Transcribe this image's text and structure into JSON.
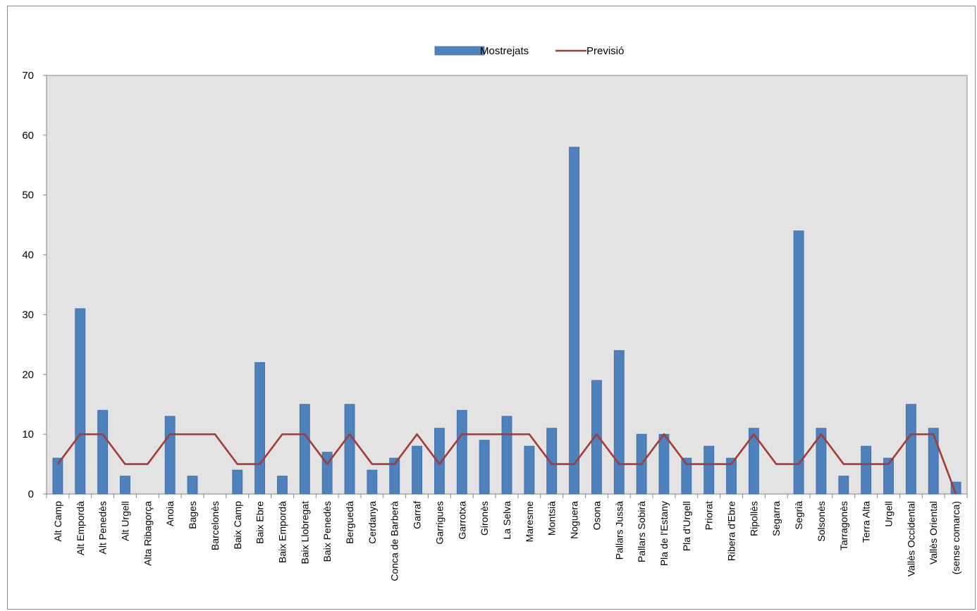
{
  "chart_data": {
    "type": "bar",
    "categories": [
      "Alt Camp",
      "Alt Empordà",
      "Alt Penedès",
      "Alt Urgell",
      "Alta Ribagorça",
      "Anoia",
      "Bages",
      "Barcelonès",
      "Baix Camp",
      "Baix Ebre",
      "Baix Empordà",
      "Baix Llobregat",
      "Baix Penedès",
      "Berguedà",
      "Cerdanya",
      "Conca de Barberà",
      "Garraf",
      "Garrigues",
      "Garrotxa",
      "Gironès",
      "La Selva",
      "Maresme",
      "Montsià",
      "Noguera",
      "Osona",
      "Pallars Jussà",
      "Pallars Sobirà",
      "Pla de l'Estany",
      "Pla d'Urgell",
      "Priorat",
      "Ribera d'Ebre",
      "Ripollès",
      "Segarra",
      "Segrià",
      "Solsonès",
      "Tarragonès",
      "Terra Alta",
      "Urgell",
      "Vallès Occidental",
      "Vallès Oriental",
      "(sense comarca)"
    ],
    "series": [
      {
        "name": "Mostrejats",
        "type": "bar",
        "color": "#4f81bd",
        "values": [
          6,
          31,
          14,
          3,
          0,
          13,
          3,
          0,
          4,
          22,
          3,
          15,
          7,
          15,
          4,
          6,
          8,
          11,
          14,
          9,
          13,
          8,
          11,
          58,
          19,
          24,
          10,
          10,
          6,
          8,
          6,
          11,
          0,
          44,
          11,
          3,
          8,
          6,
          15,
          11,
          2
        ]
      },
      {
        "name": "Previsió",
        "type": "line",
        "color": "#a33b36",
        "values": [
          5,
          10,
          10,
          5,
          5,
          10,
          10,
          10,
          5,
          5,
          10,
          10,
          5,
          10,
          5,
          5,
          10,
          5,
          10,
          10,
          10,
          10,
          5,
          5,
          10,
          5,
          5,
          10,
          5,
          5,
          5,
          10,
          5,
          5,
          10,
          5,
          5,
          5,
          10,
          10,
          0
        ]
      }
    ],
    "ylim": [
      0,
      70
    ],
    "yticks": [
      0,
      10,
      20,
      30,
      40,
      50,
      60,
      70
    ],
    "grid": false,
    "legend": "top-center",
    "plot_background": "#e3e3e3"
  }
}
